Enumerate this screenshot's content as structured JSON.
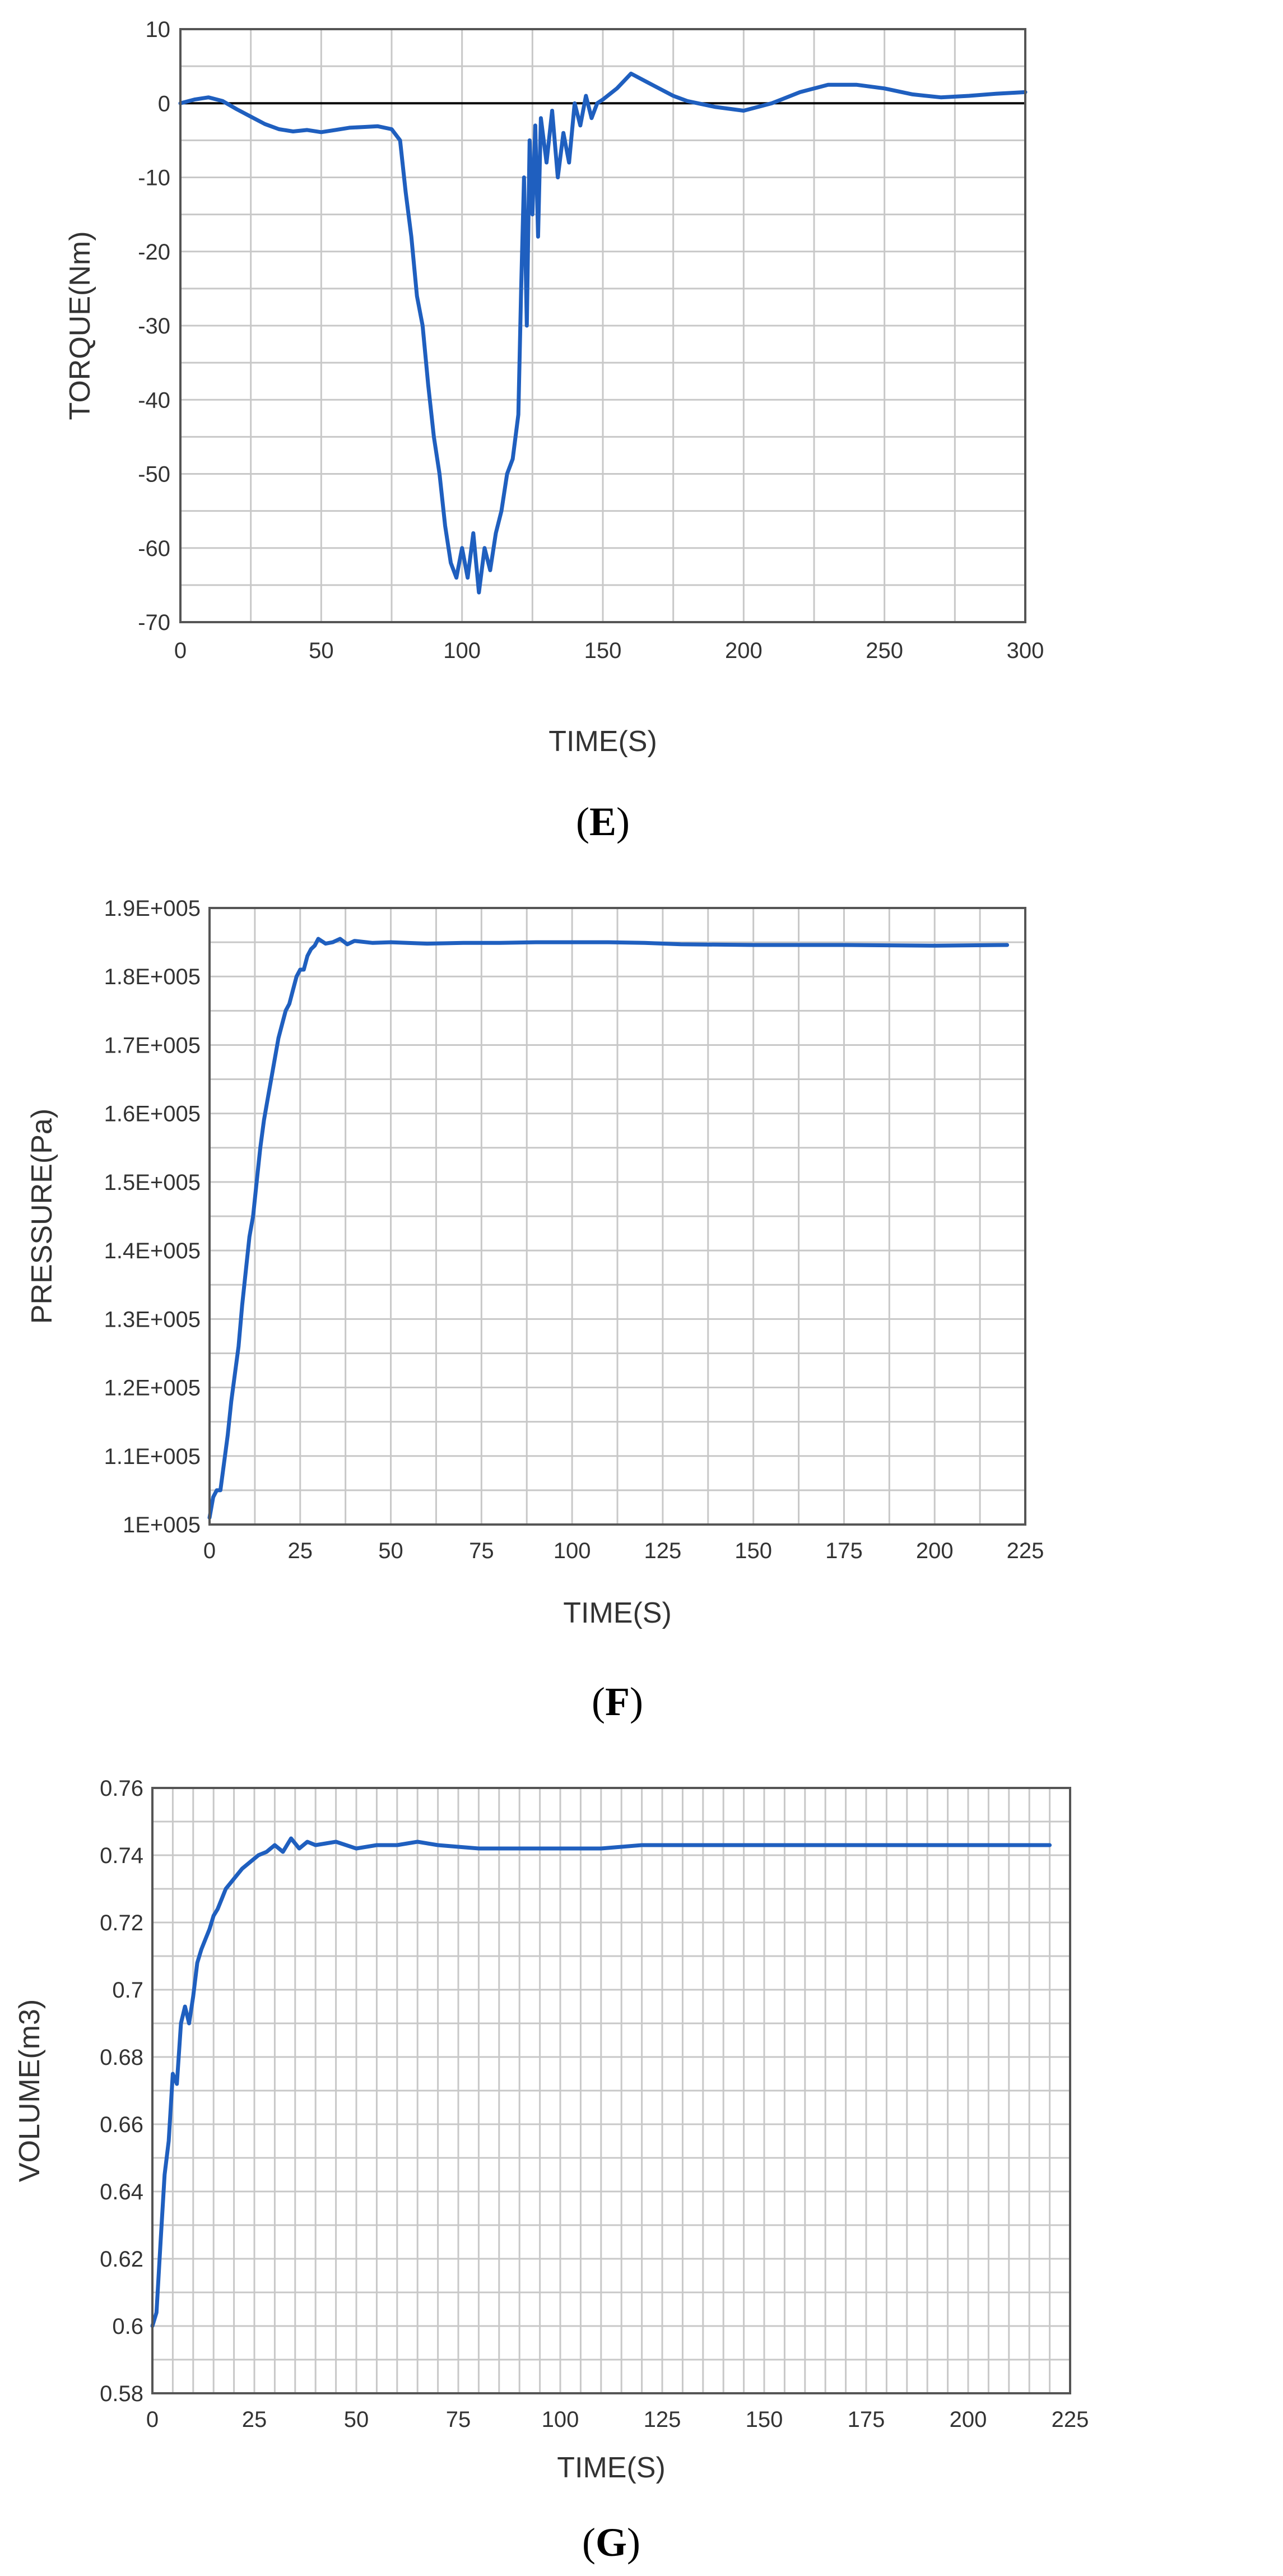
{
  "colors": {
    "series": "#1f5fbf",
    "grid": "#c8c8c8",
    "frame": "#555555",
    "zero_line": "#000000"
  },
  "chart_data": [
    {
      "id": "E",
      "type": "line",
      "panel_label_open": "(",
      "panel_label_letter": "E",
      "panel_label_close": ")",
      "xlabel": "TIME(S)",
      "ylabel": "TORQUE(Nm)",
      "xlim": [
        0,
        300
      ],
      "ylim": [
        -70,
        10
      ],
      "xticks": [
        0,
        50,
        100,
        150,
        200,
        250,
        300
      ],
      "yticks": [
        -70,
        -60,
        -50,
        -40,
        -30,
        -20,
        -10,
        0,
        10
      ],
      "x_minor_step": 25,
      "y_minor_step": 5,
      "zero_line": true,
      "grid": true,
      "series": [
        {
          "x": [
            0,
            5,
            10,
            15,
            20,
            25,
            30,
            35,
            40,
            45,
            50,
            55,
            60,
            65,
            70,
            75,
            78,
            80,
            82,
            84,
            86,
            88,
            90,
            92,
            94,
            96,
            98,
            100,
            102,
            104,
            106,
            108,
            110,
            112,
            114,
            116,
            118,
            120,
            121,
            122,
            123,
            124,
            125,
            126,
            127,
            128,
            130,
            132,
            134,
            136,
            138,
            140,
            142,
            144,
            146,
            148,
            150,
            155,
            160,
            165,
            170,
            175,
            180,
            190,
            200,
            210,
            220,
            230,
            240,
            250,
            260,
            270,
            280,
            290,
            300
          ],
          "y": [
            0,
            0.5,
            0.8,
            0.3,
            -0.8,
            -1.8,
            -2.8,
            -3.5,
            -3.8,
            -3.6,
            -3.9,
            -3.6,
            -3.3,
            -3.2,
            -3.1,
            -3.5,
            -5,
            -12,
            -18,
            -26,
            -30,
            -38,
            -45,
            -50,
            -57,
            -62,
            -64,
            -60,
            -64,
            -58,
            -66,
            -60,
            -63,
            -58,
            -55,
            -50,
            -48,
            -42,
            -25,
            -10,
            -30,
            -5,
            -15,
            -3,
            -18,
            -2,
            -8,
            -1,
            -10,
            -4,
            -8,
            0,
            -3,
            1,
            -2,
            0,
            0.5,
            2,
            4,
            3,
            2,
            1,
            0.3,
            -0.5,
            -1,
            0,
            1.5,
            2.5,
            2.5,
            2,
            1.2,
            0.8,
            1,
            1.3,
            1.5
          ]
        }
      ]
    },
    {
      "id": "F",
      "type": "line",
      "panel_label_open": "(",
      "panel_label_letter": "F",
      "panel_label_close": ")",
      "xlabel": "TIME(S)",
      "ylabel": "PRESSURE(Pa)",
      "xlim": [
        0,
        225
      ],
      "ylim": [
        100000,
        190000
      ],
      "xticks": [
        0,
        25,
        50,
        75,
        100,
        125,
        150,
        175,
        200,
        225
      ],
      "yticks": [
        100000,
        110000,
        120000,
        130000,
        140000,
        150000,
        160000,
        170000,
        180000,
        190000
      ],
      "ytick_labels": [
        "1E+005",
        "1.1E+005",
        "1.2E+005",
        "1.3E+005",
        "1.4E+005",
        "1.5E+005",
        "1.6E+005",
        "1.7E+005",
        "1.8E+005",
        "1.9E+005"
      ],
      "x_minor_step": 12.5,
      "y_minor_step": 5000,
      "zero_line": false,
      "grid": true,
      "series": [
        {
          "x": [
            0,
            1,
            2,
            3,
            4,
            5,
            6,
            7,
            8,
            9,
            10,
            11,
            12,
            13,
            14,
            15,
            16,
            17,
            18,
            19,
            20,
            21,
            22,
            23,
            24,
            25,
            26,
            27,
            28,
            29,
            30,
            32,
            34,
            36,
            38,
            40,
            45,
            50,
            60,
            70,
            80,
            90,
            100,
            110,
            120,
            130,
            150,
            175,
            200,
            220
          ],
          "y": [
            101000,
            104000,
            105000,
            105000,
            109000,
            113000,
            118000,
            122000,
            126000,
            132000,
            137000,
            142000,
            145000,
            150000,
            155000,
            159000,
            162000,
            165000,
            168000,
            171000,
            173000,
            175000,
            176000,
            178000,
            180000,
            181000,
            181000,
            183000,
            184000,
            184500,
            185500,
            184800,
            185000,
            185500,
            184700,
            185200,
            184900,
            185000,
            184800,
            184900,
            184900,
            185000,
            185000,
            185000,
            184900,
            184700,
            184600,
            184600,
            184500,
            184600
          ]
        }
      ]
    },
    {
      "id": "G",
      "type": "line",
      "panel_label_open": "(",
      "panel_label_letter": "G",
      "panel_label_close": ")",
      "xlabel": "TIME(S)",
      "ylabel": "VOLUME(m3)",
      "xlim": [
        0,
        225
      ],
      "ylim": [
        0.58,
        0.76
      ],
      "xticks": [
        0,
        25,
        50,
        75,
        100,
        125,
        150,
        175,
        200,
        225
      ],
      "yticks": [
        0.58,
        0.6,
        0.62,
        0.64,
        0.66,
        0.68,
        0.7,
        0.72,
        0.74,
        0.76
      ],
      "ytick_labels": [
        "0.58",
        "0.6",
        "0.62",
        "0.64",
        "0.66",
        "0.68",
        "0.7",
        "0.72",
        "0.74",
        "0.76"
      ],
      "x_minor_step": 5,
      "y_minor_step": 0.01,
      "zero_line": false,
      "grid": true,
      "series": [
        {
          "x": [
            0,
            1,
            2,
            3,
            4,
            5,
            6,
            7,
            8,
            9,
            10,
            11,
            12,
            13,
            14,
            15,
            16,
            17,
            18,
            20,
            22,
            24,
            26,
            28,
            30,
            32,
            34,
            36,
            38,
            40,
            45,
            50,
            55,
            60,
            65,
            70,
            80,
            90,
            100,
            110,
            120,
            140,
            160,
            180,
            200,
            220
          ],
          "y": [
            0.6,
            0.604,
            0.625,
            0.645,
            0.655,
            0.675,
            0.672,
            0.69,
            0.695,
            0.69,
            0.698,
            0.708,
            0.712,
            0.715,
            0.718,
            0.722,
            0.724,
            0.727,
            0.73,
            0.733,
            0.736,
            0.738,
            0.74,
            0.741,
            0.743,
            0.741,
            0.745,
            0.742,
            0.744,
            0.743,
            0.744,
            0.742,
            0.743,
            0.743,
            0.744,
            0.743,
            0.742,
            0.742,
            0.742,
            0.742,
            0.743,
            0.743,
            0.743,
            0.743,
            0.743,
            0.743
          ]
        }
      ]
    }
  ]
}
